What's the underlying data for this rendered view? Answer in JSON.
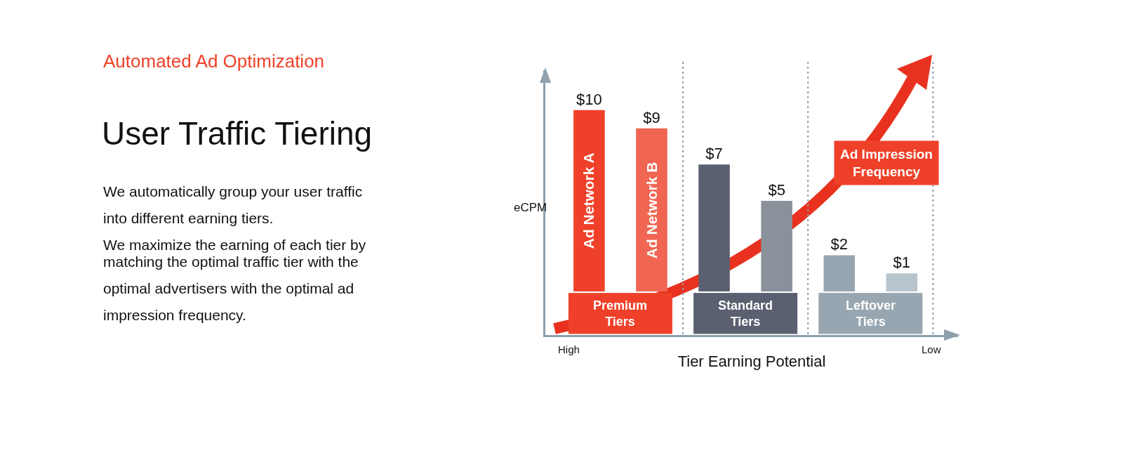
{
  "chart_data": {
    "type": "bar",
    "title": "User Traffic Tiering",
    "subtitle": "We automatically group your user traffic\ninto different earning tiers.\nWe maximize the earning of each tier by\nmatching the optimal traffic tier with the\noptimal advertisers with the optimal ad\nimpression frequency.",
    "xlabel": "Tier Earning Potential",
    "ylabel": "eCPM",
    "categories": [
      null,
      null,
      null,
      null,
      null,
      null
    ],
    "values": [
      10,
      9,
      7,
      5,
      2,
      1
    ],
    "colors": [
      "#ef4129",
      "#f06652",
      "#5a6070",
      "#8a919b",
      "#97a6b0",
      "#b8c4cc"
    ],
    "value_labels": [
      "$10",
      "$9",
      "$7",
      "$5",
      "$2",
      "$1"
    ],
    "ylim": [
      -2.4,
      12.2
    ],
    "annotations": [
      "Automated Ad Optimization",
      "Ad Impression\nFrequency",
      "Premium\nTiers",
      "Standard\nTiers",
      "Leftover\nTiers",
      "High",
      "Low",
      "Ad Network A",
      "Ad Network B"
    ],
    "legend": false
  }
}
